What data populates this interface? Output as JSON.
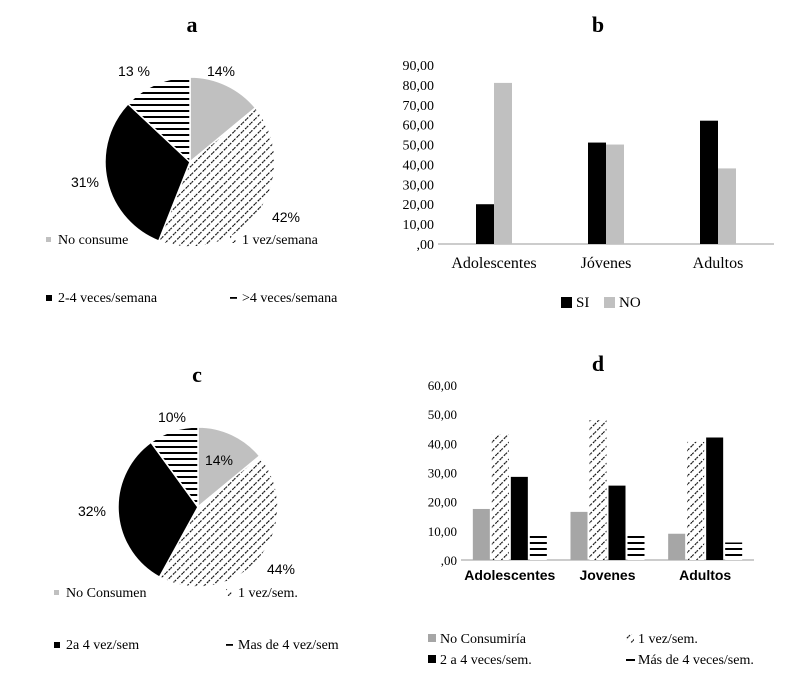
{
  "chart_data": [
    {
      "panel": "a",
      "type": "pie",
      "labels": [
        "No consume",
        "1 vez/semana",
        "2-4 veces/semana",
        ">4 veces/semana"
      ],
      "values": [
        14,
        42,
        31,
        13
      ],
      "value_labels": [
        "14%",
        "42%",
        "31%",
        "13 %"
      ],
      "legend": "bottom"
    },
    {
      "panel": "b",
      "type": "bar",
      "categories": [
        "Adolescentes",
        "Jóvenes",
        "Adultos"
      ],
      "series": [
        {
          "name": "SI",
          "values": [
            20,
            51,
            62
          ]
        },
        {
          "name": "NO",
          "values": [
            81,
            50,
            38
          ]
        }
      ],
      "ylim": [
        0,
        90
      ],
      "yticks": [
        ",00",
        "10,00",
        "20,00",
        "30,00",
        "40,00",
        "50,00",
        "60,00",
        "70,00",
        "80,00",
        "90,00"
      ],
      "legend": "bottom",
      "grid": false
    },
    {
      "panel": "c",
      "type": "pie",
      "labels": [
        "No Consumen",
        "1 vez/sem.",
        "2a 4 vez/sem",
        "Mas de 4 vez/sem"
      ],
      "values": [
        14,
        44,
        32,
        10
      ],
      "value_labels": [
        "14%",
        "44%",
        "32%",
        "10%"
      ],
      "legend": "bottom"
    },
    {
      "panel": "d",
      "type": "bar",
      "categories": [
        "Adolescentes",
        "Jovenes",
        "Adultos"
      ],
      "series": [
        {
          "name": "No Consumiría",
          "values": [
            17.5,
            16.5,
            9
          ]
        },
        {
          "name": "1 vez/sem.",
          "values": [
            43,
            48,
            40.5
          ]
        },
        {
          "name": "2 a 4 veces/sem.",
          "values": [
            28.5,
            25.5,
            42
          ]
        },
        {
          "name": "Más de 4 veces/sem.",
          "values": [
            9,
            9,
            6
          ]
        }
      ],
      "ylim": [
        0,
        60
      ],
      "yticks": [
        ",00",
        "10,00",
        "20,00",
        "30,00",
        "40,00",
        "50,00",
        "60,00"
      ],
      "legend": "bottom",
      "grid": false
    }
  ],
  "colors": {
    "light": "#c0c0c0",
    "mid": "#a6a6a6",
    "dark": "#000000"
  }
}
